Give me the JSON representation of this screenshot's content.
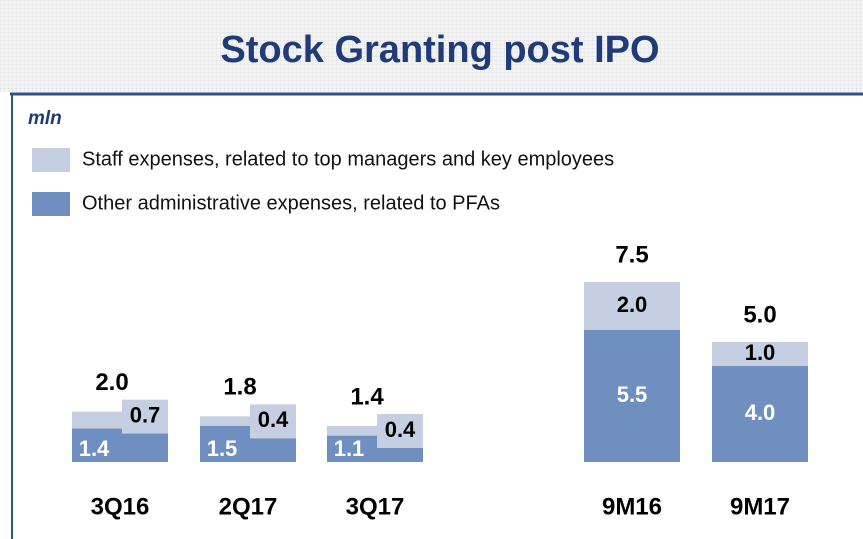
{
  "chart_data": {
    "type": "stacked_bar",
    "title": "Stock Granting post IPO",
    "unit_label": "mln",
    "categories": [
      "3Q16",
      "2Q17",
      "3Q17",
      "9M16",
      "9M17"
    ],
    "series": [
      {
        "name": "Other administrative expenses, related to PFAs",
        "color": "#6f8fc1",
        "values": [
          1.4,
          1.5,
          1.1,
          5.5,
          4
        ],
        "value_labels": [
          "1.4",
          "1.5",
          "1.1",
          "5.5",
          "4.0"
        ]
      },
      {
        "name": "Staff expenses, related to top managers and key employees",
        "color": "#c5cfe1",
        "values": [
          0.7,
          0.4,
          0.4,
          2,
          1
        ],
        "value_labels": [
          "0.7",
          "0.4",
          "0.4",
          "2.0",
          "1.0"
        ]
      }
    ],
    "totals": [
      2,
      1.8,
      1.4,
      7.5,
      5
    ],
    "total_labels": [
      "2.0",
      "1.8",
      "1.4",
      "7.5",
      "5.0"
    ],
    "ylim": [
      0,
      9
    ],
    "legend": "top-left"
  }
}
